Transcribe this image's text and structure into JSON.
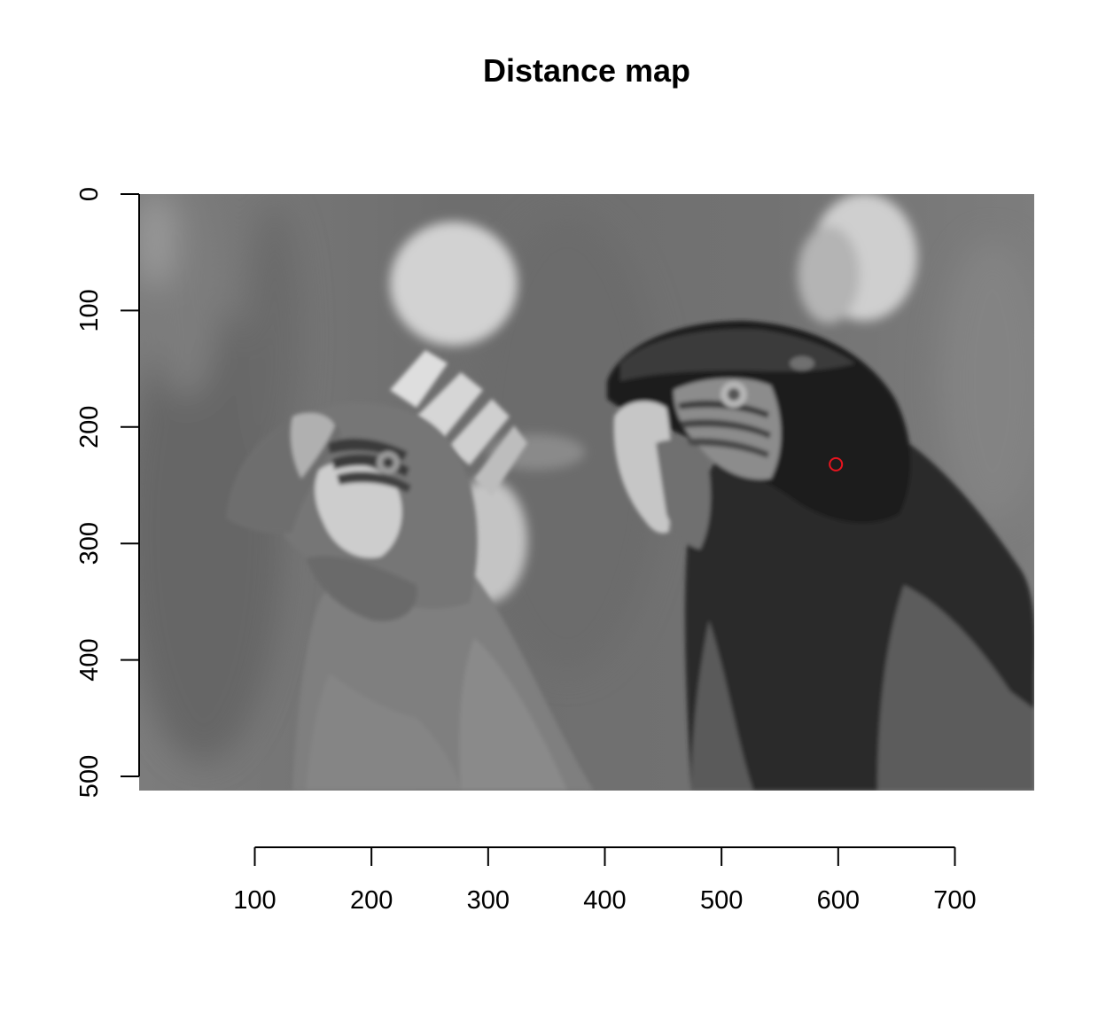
{
  "chart_data": {
    "type": "heatmap",
    "title": "Distance map",
    "xlabel": "",
    "ylabel": "",
    "image": {
      "x_range": [
        1,
        768
      ],
      "y_range": [
        0,
        512
      ],
      "y_reversed": true,
      "colormap": "grayscale"
    },
    "x_axis": {
      "ticks": [
        100,
        200,
        300,
        400,
        500,
        600,
        700
      ],
      "labels": [
        "100",
        "200",
        "300",
        "400",
        "500",
        "600",
        "700"
      ]
    },
    "y_axis": {
      "ticks": [
        0,
        100,
        200,
        300,
        400,
        500
      ],
      "labels": [
        "0",
        "100",
        "200",
        "300",
        "400",
        "500"
      ]
    },
    "marker": {
      "x": 598,
      "y": 232,
      "shape": "open-circle",
      "color": "#e8141e"
    }
  }
}
